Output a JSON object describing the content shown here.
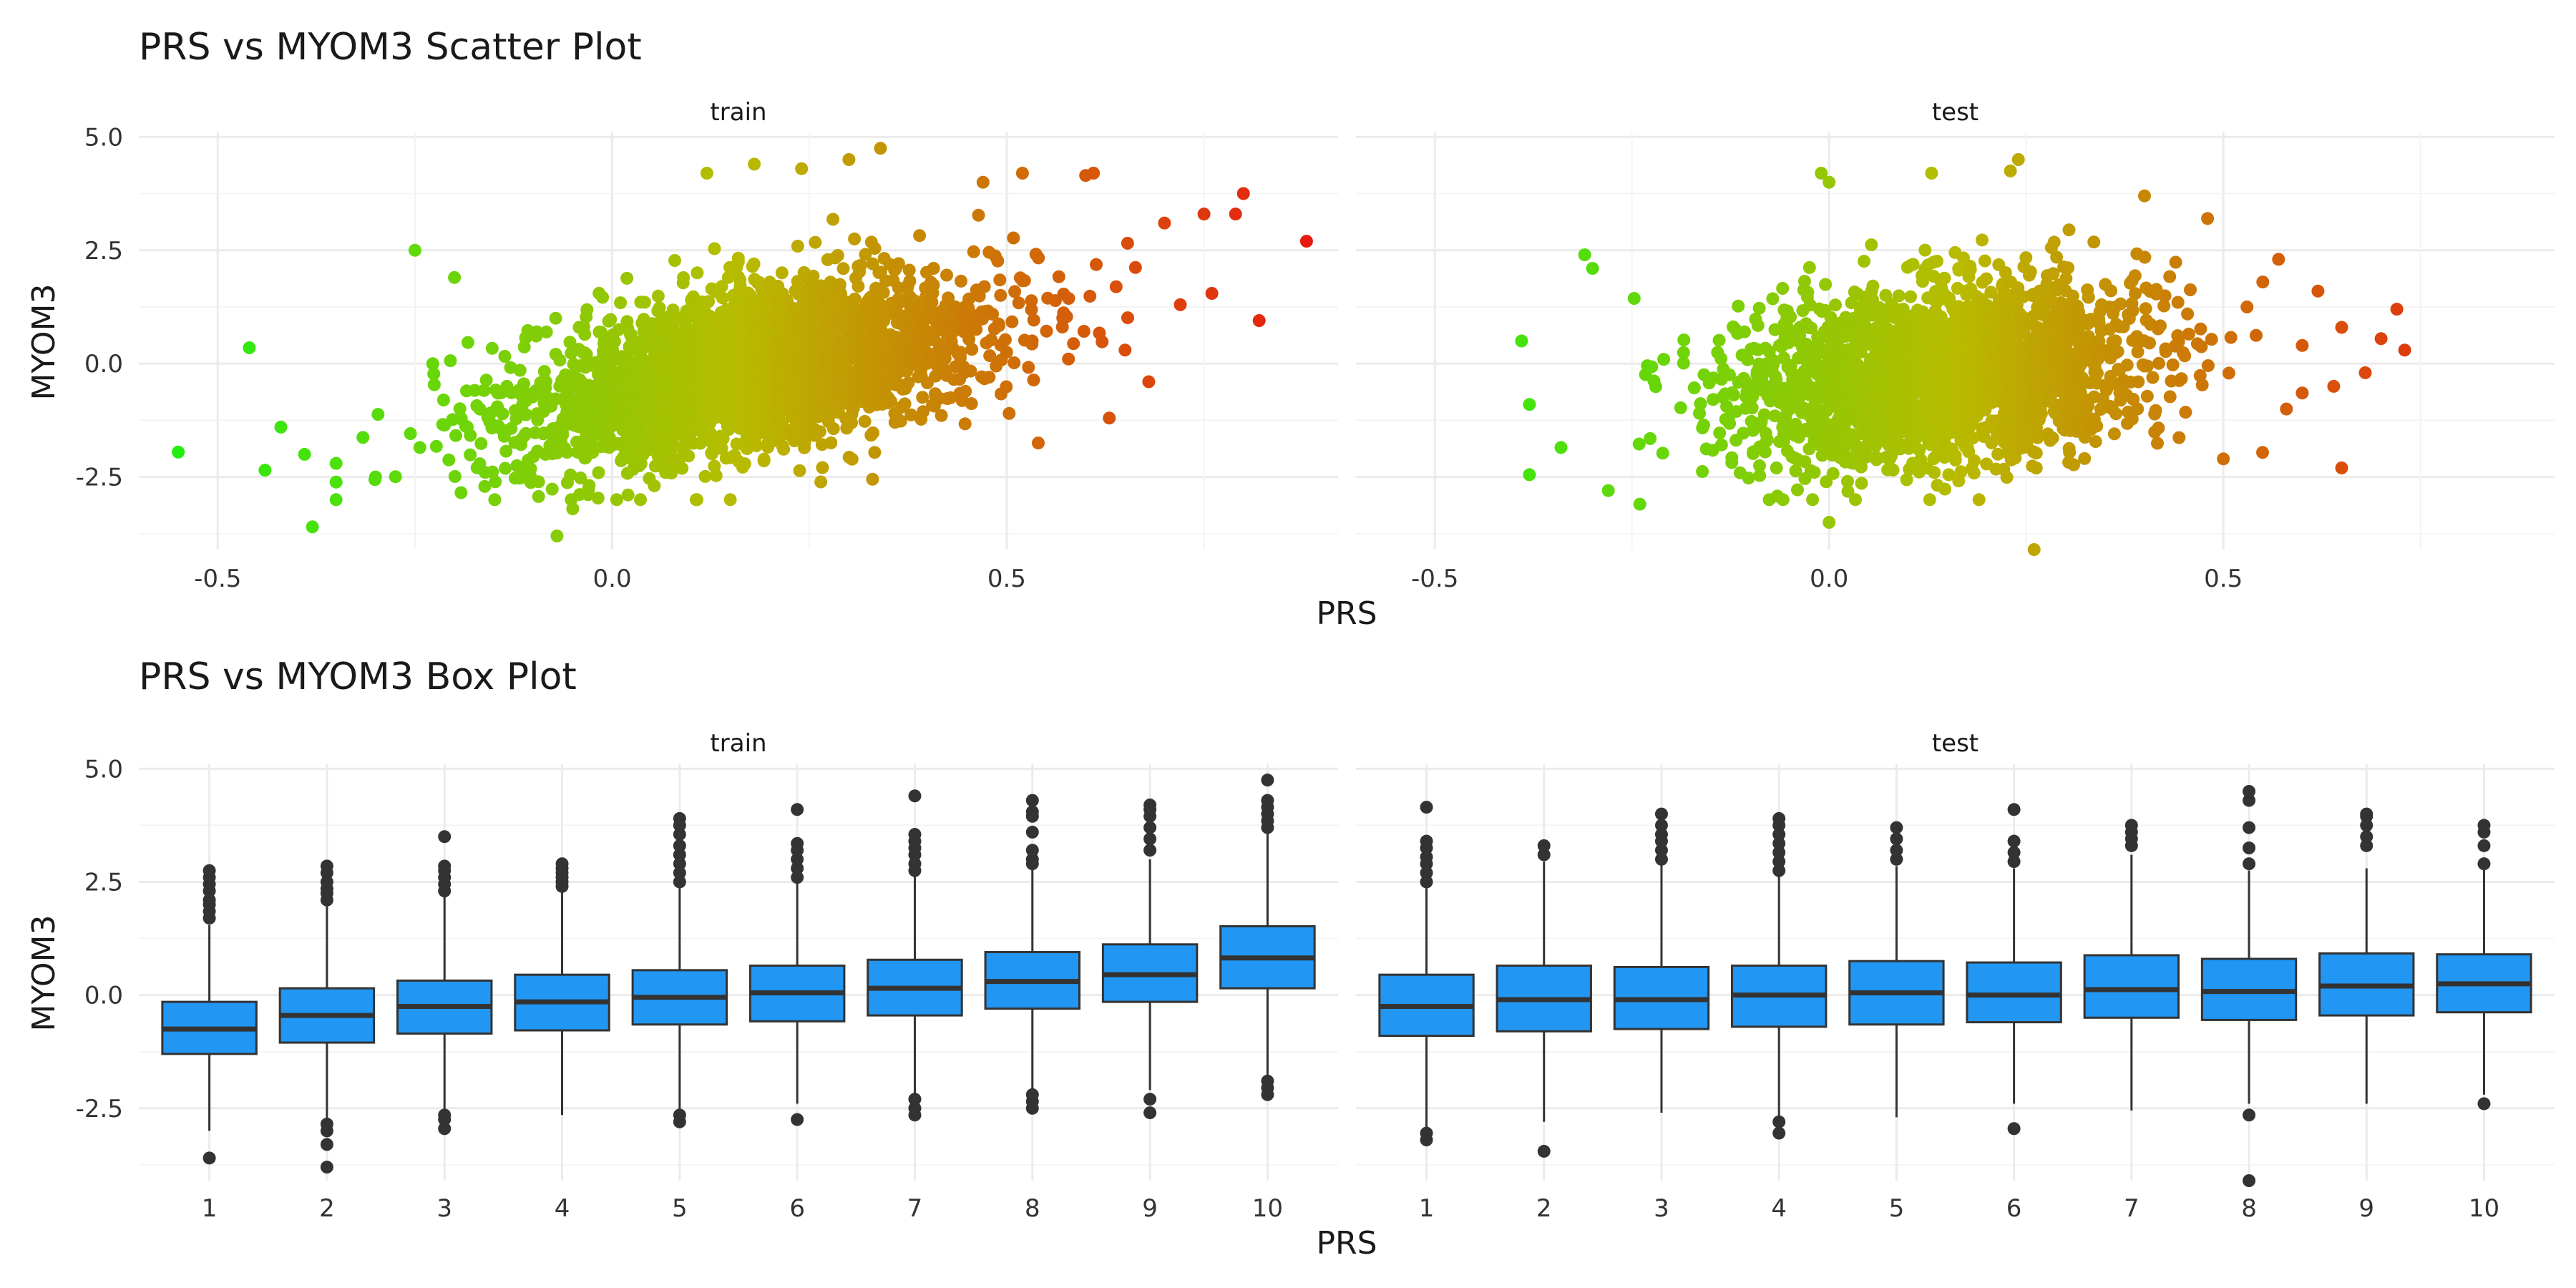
{
  "colors": {
    "scatter_low": "#22ee11",
    "scatter_mid": "#b8bb00",
    "scatter_high": "#e81a10",
    "box_fill": "#2196f3",
    "box_stroke": "#333333",
    "grid_major": "#ebebeb",
    "grid_minor": "#f4f4f4",
    "text": "#333333"
  },
  "chart_data": [
    {
      "type": "scatter",
      "title": "PRS vs MYOM3 Scatter Plot",
      "xlabel": "PRS",
      "ylabel": "MYOM3",
      "xlim": [
        -0.6,
        0.92
      ],
      "ylim": [
        -4.1,
        5.1
      ],
      "xticks": [
        -0.5,
        0.0,
        0.5
      ],
      "xtick_labels": [
        "-0.5",
        "0.0",
        "0.5"
      ],
      "yticks": [
        -2.5,
        0.0,
        2.5,
        5.0
      ],
      "ytick_labels": [
        "-2.5",
        "0.0",
        "2.5",
        "5.0"
      ],
      "color_range": [
        -0.55,
        0.88
      ],
      "grid": true,
      "panels": [
        {
          "name": "train",
          "cloud": {
            "x_mean": 0.18,
            "x_sd": 0.15,
            "y_intercept": -0.7,
            "y_slope": 3.2,
            "y_sd": 0.9,
            "x_min": -0.35,
            "x_max": 0.68,
            "n": 2600
          },
          "points": [
            {
              "x": -0.55,
              "y": -1.95
            },
            {
              "x": -0.46,
              "y": 0.35
            },
            {
              "x": -0.44,
              "y": -2.35
            },
            {
              "x": -0.42,
              "y": -1.4
            },
            {
              "x": -0.39,
              "y": -2.0
            },
            {
              "x": -0.38,
              "y": -3.6
            },
            {
              "x": -0.35,
              "y": -2.2
            },
            {
              "x": -0.3,
              "y": -2.5
            },
            {
              "x": -0.25,
              "y": 2.5
            },
            {
              "x": -0.2,
              "y": 1.9
            },
            {
              "x": -0.07,
              "y": -3.8
            },
            {
              "x": -0.05,
              "y": -3.2
            },
            {
              "x": 0.12,
              "y": 4.2
            },
            {
              "x": 0.18,
              "y": 4.4
            },
            {
              "x": 0.24,
              "y": 4.3
            },
            {
              "x": 0.3,
              "y": 4.5
            },
            {
              "x": 0.34,
              "y": 4.75
            },
            {
              "x": 0.33,
              "y": -2.55
            },
            {
              "x": 0.47,
              "y": 4.0
            },
            {
              "x": 0.52,
              "y": 4.2
            },
            {
              "x": 0.54,
              "y": -1.75
            },
            {
              "x": 0.6,
              "y": 4.15
            },
            {
              "x": 0.61,
              "y": 4.2
            },
            {
              "x": 0.63,
              "y": -1.2
            },
            {
              "x": 0.65,
              "y": 0.3
            },
            {
              "x": 0.68,
              "y": -0.4
            },
            {
              "x": 0.7,
              "y": 3.1
            },
            {
              "x": 0.72,
              "y": 1.3
            },
            {
              "x": 0.75,
              "y": 3.3
            },
            {
              "x": 0.76,
              "y": 1.55
            },
            {
              "x": 0.79,
              "y": 3.3
            },
            {
              "x": 0.8,
              "y": 3.75
            },
            {
              "x": 0.82,
              "y": 0.95
            },
            {
              "x": 0.88,
              "y": 2.7
            }
          ]
        },
        {
          "name": "test",
          "cloud": {
            "x_mean": 0.14,
            "x_sd": 0.13,
            "y_intercept": -0.45,
            "y_slope": 1.8,
            "y_sd": 0.95,
            "x_min": -0.33,
            "x_max": 0.6,
            "n": 2200
          },
          "points": [
            {
              "x": -0.39,
              "y": 0.5
            },
            {
              "x": -0.38,
              "y": -0.9
            },
            {
              "x": -0.38,
              "y": -2.45
            },
            {
              "x": -0.34,
              "y": -1.85
            },
            {
              "x": -0.31,
              "y": 2.4
            },
            {
              "x": -0.3,
              "y": 2.1
            },
            {
              "x": -0.28,
              "y": -2.8
            },
            {
              "x": -0.24,
              "y": -3.1
            },
            {
              "x": -0.0,
              "y": -3.5
            },
            {
              "x": -0.01,
              "y": 4.2
            },
            {
              "x": 0.0,
              "y": 4.0
            },
            {
              "x": 0.13,
              "y": 4.2
            },
            {
              "x": 0.23,
              "y": 4.25
            },
            {
              "x": 0.24,
              "y": 4.5
            },
            {
              "x": 0.26,
              "y": -4.1
            },
            {
              "x": 0.4,
              "y": 3.7
            },
            {
              "x": 0.48,
              "y": 3.2
            },
            {
              "x": 0.5,
              "y": -2.1
            },
            {
              "x": 0.53,
              "y": 1.25
            },
            {
              "x": 0.55,
              "y": 1.8
            },
            {
              "x": 0.57,
              "y": 2.3
            },
            {
              "x": 0.58,
              "y": -1.0
            },
            {
              "x": 0.6,
              "y": 0.4
            },
            {
              "x": 0.62,
              "y": 1.6
            },
            {
              "x": 0.64,
              "y": -0.5
            },
            {
              "x": 0.65,
              "y": 0.8
            },
            {
              "x": 0.65,
              "y": -2.3
            },
            {
              "x": 0.68,
              "y": -0.2
            },
            {
              "x": 0.7,
              "y": 0.55
            },
            {
              "x": 0.72,
              "y": 1.2
            },
            {
              "x": 0.73,
              "y": 0.3
            }
          ]
        }
      ]
    },
    {
      "type": "box",
      "title": "PRS vs MYOM3 Box Plot",
      "xlabel": "PRS",
      "ylabel": "MYOM3",
      "categories": [
        "1",
        "2",
        "3",
        "4",
        "5",
        "6",
        "7",
        "8",
        "9",
        "10"
      ],
      "ylim": [
        -4.1,
        5.1
      ],
      "yticks": [
        -2.5,
        0.0,
        2.5,
        5.0
      ],
      "ytick_labels": [
        "-2.5",
        "0.0",
        "2.5",
        "5.0"
      ],
      "grid": true,
      "panels": [
        {
          "name": "train",
          "boxes": [
            {
              "q1": -1.3,
              "median": -0.75,
              "q3": -0.15,
              "lo": -3.0,
              "hi": 1.55,
              "outliers": [
                -3.6,
                1.7,
                1.85,
                2.0,
                2.1,
                2.3,
                2.45,
                2.6,
                2.75
              ]
            },
            {
              "q1": -1.05,
              "median": -0.45,
              "q3": 0.15,
              "lo": -2.75,
              "hi": 2.0,
              "outliers": [
                -3.8,
                -3.3,
                -3.0,
                -2.85,
                2.1,
                2.25,
                2.35,
                2.5,
                2.7,
                2.85
              ]
            },
            {
              "q1": -0.85,
              "median": -0.25,
              "q3": 0.32,
              "lo": -2.55,
              "hi": 2.2,
              "outliers": [
                -2.95,
                -2.75,
                -2.65,
                2.3,
                2.45,
                2.6,
                2.75,
                2.85,
                3.5
              ]
            },
            {
              "q1": -0.78,
              "median": -0.15,
              "q3": 0.45,
              "lo": -2.65,
              "hi": 2.3,
              "outliers": [
                2.4,
                2.5,
                2.6,
                2.7,
                2.8,
                2.9
              ]
            },
            {
              "q1": -0.65,
              "median": -0.05,
              "q3": 0.55,
              "lo": -2.55,
              "hi": 2.4,
              "outliers": [
                -2.8,
                -2.65,
                2.5,
                2.7,
                2.9,
                3.1,
                3.3,
                3.55,
                3.75,
                3.9
              ]
            },
            {
              "q1": -0.58,
              "median": 0.05,
              "q3": 0.65,
              "lo": -2.4,
              "hi": 2.5,
              "outliers": [
                -2.75,
                2.6,
                2.8,
                3.0,
                3.2,
                3.35,
                4.1
              ]
            },
            {
              "q1": -0.45,
              "median": 0.15,
              "q3": 0.78,
              "lo": -2.2,
              "hi": 2.65,
              "outliers": [
                -2.65,
                -2.5,
                -2.3,
                2.75,
                2.9,
                3.1,
                3.25,
                3.4,
                3.55,
                4.4
              ]
            },
            {
              "q1": -0.3,
              "median": 0.3,
              "q3": 0.95,
              "lo": -2.1,
              "hi": 2.8,
              "outliers": [
                -2.5,
                -2.35,
                -2.2,
                2.9,
                3.0,
                3.2,
                3.6,
                3.95,
                4.05,
                4.3
              ]
            },
            {
              "q1": -0.15,
              "median": 0.45,
              "q3": 1.12,
              "lo": -2.1,
              "hi": 3.0,
              "outliers": [
                -2.6,
                -2.3,
                3.2,
                3.45,
                3.7,
                3.95,
                4.1,
                4.2
              ]
            },
            {
              "q1": 0.15,
              "median": 0.82,
              "q3": 1.52,
              "lo": -1.8,
              "hi": 3.6,
              "outliers": [
                -2.2,
                -2.05,
                -1.9,
                3.7,
                3.85,
                4.0,
                4.15,
                4.3,
                4.75
              ]
            }
          ]
        },
        {
          "name": "test",
          "boxes": [
            {
              "q1": -0.9,
              "median": -0.25,
              "q3": 0.45,
              "lo": -2.95,
              "hi": 2.4,
              "outliers": [
                -3.2,
                -3.05,
                2.5,
                2.7,
                2.9,
                3.05,
                3.25,
                3.4,
                4.15
              ]
            },
            {
              "q1": -0.8,
              "median": -0.1,
              "q3": 0.65,
              "lo": -2.8,
              "hi": 2.95,
              "outliers": [
                -3.45,
                3.1,
                3.3
              ]
            },
            {
              "q1": -0.75,
              "median": -0.1,
              "q3": 0.62,
              "lo": -2.6,
              "hi": 2.9,
              "outliers": [
                3.0,
                3.2,
                3.4,
                3.55,
                3.75,
                4.0
              ]
            },
            {
              "q1": -0.7,
              "median": 0.0,
              "q3": 0.65,
              "lo": -2.7,
              "hi": 2.65,
              "outliers": [
                -3.05,
                -2.8,
                2.75,
                2.95,
                3.15,
                3.35,
                3.55,
                3.75,
                3.9
              ]
            },
            {
              "q1": -0.65,
              "median": 0.05,
              "q3": 0.75,
              "lo": -2.7,
              "hi": 2.85,
              "outliers": [
                3.0,
                3.2,
                3.45,
                3.7
              ]
            },
            {
              "q1": -0.6,
              "median": 0.0,
              "q3": 0.72,
              "lo": -2.4,
              "hi": 2.8,
              "outliers": [
                -2.95,
                2.95,
                3.15,
                3.4,
                4.1
              ]
            },
            {
              "q1": -0.5,
              "median": 0.12,
              "q3": 0.88,
              "lo": -2.55,
              "hi": 3.1,
              "outliers": [
                3.3,
                3.45,
                3.6,
                3.75
              ]
            },
            {
              "q1": -0.55,
              "median": 0.08,
              "q3": 0.8,
              "lo": -2.4,
              "hi": 2.75,
              "outliers": [
                -4.1,
                -2.65,
                2.9,
                3.25,
                3.7,
                4.3,
                4.5
              ]
            },
            {
              "q1": -0.45,
              "median": 0.2,
              "q3": 0.92,
              "lo": -2.4,
              "hi": 2.8,
              "outliers": [
                3.3,
                3.5,
                3.75,
                3.95,
                4.0
              ]
            },
            {
              "q1": -0.38,
              "median": 0.25,
              "q3": 0.9,
              "lo": -2.2,
              "hi": 2.8,
              "outliers": [
                -2.4,
                2.9,
                3.3,
                3.6,
                3.75
              ]
            }
          ]
        }
      ]
    }
  ]
}
